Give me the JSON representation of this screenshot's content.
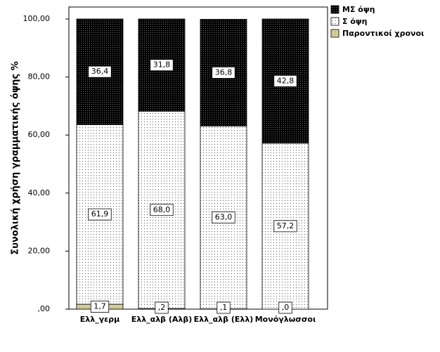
{
  "chart_data": {
    "type": "stacked-bar",
    "y_label": "Συνολική χρήση γραμματικής όψης %",
    "categories": [
      "Ελλ_γερμ",
      "Ελλ_αλβ (Αλβ)",
      "Ελλ_αλβ (Ελλ)",
      "Μονόγλωσσοι"
    ],
    "series": [
      {
        "name": "Παροντικοί χρονοι",
        "color": "#d6cf9e",
        "values": [
          1.7,
          0.2,
          0.1,
          0.0
        ],
        "value_labels": [
          "1,7",
          ",2",
          ",1",
          ",0"
        ]
      },
      {
        "name": "Σ όψη",
        "color": "#ffffff",
        "values": [
          61.9,
          68.0,
          63.0,
          57.2
        ],
        "value_labels": [
          "61,9",
          "68,0",
          "63,0",
          "57,2"
        ]
      },
      {
        "name": "ΜΣ όψη",
        "color": "#000000",
        "values": [
          36.4,
          31.8,
          36.8,
          42.8
        ],
        "value_labels": [
          "36,4",
          "31,8",
          "36,8",
          "42,8"
        ]
      }
    ],
    "ylim": [
      0,
      100
    ],
    "yticks": [
      {
        "value": 0,
        "label": ",00"
      },
      {
        "value": 20,
        "label": "20,00"
      },
      {
        "value": 40,
        "label": "40,00"
      },
      {
        "value": 60,
        "label": "60,00"
      },
      {
        "value": 80,
        "label": "80,00"
      },
      {
        "value": 100,
        "label": "100,00"
      }
    ],
    "legend": "top-right"
  }
}
